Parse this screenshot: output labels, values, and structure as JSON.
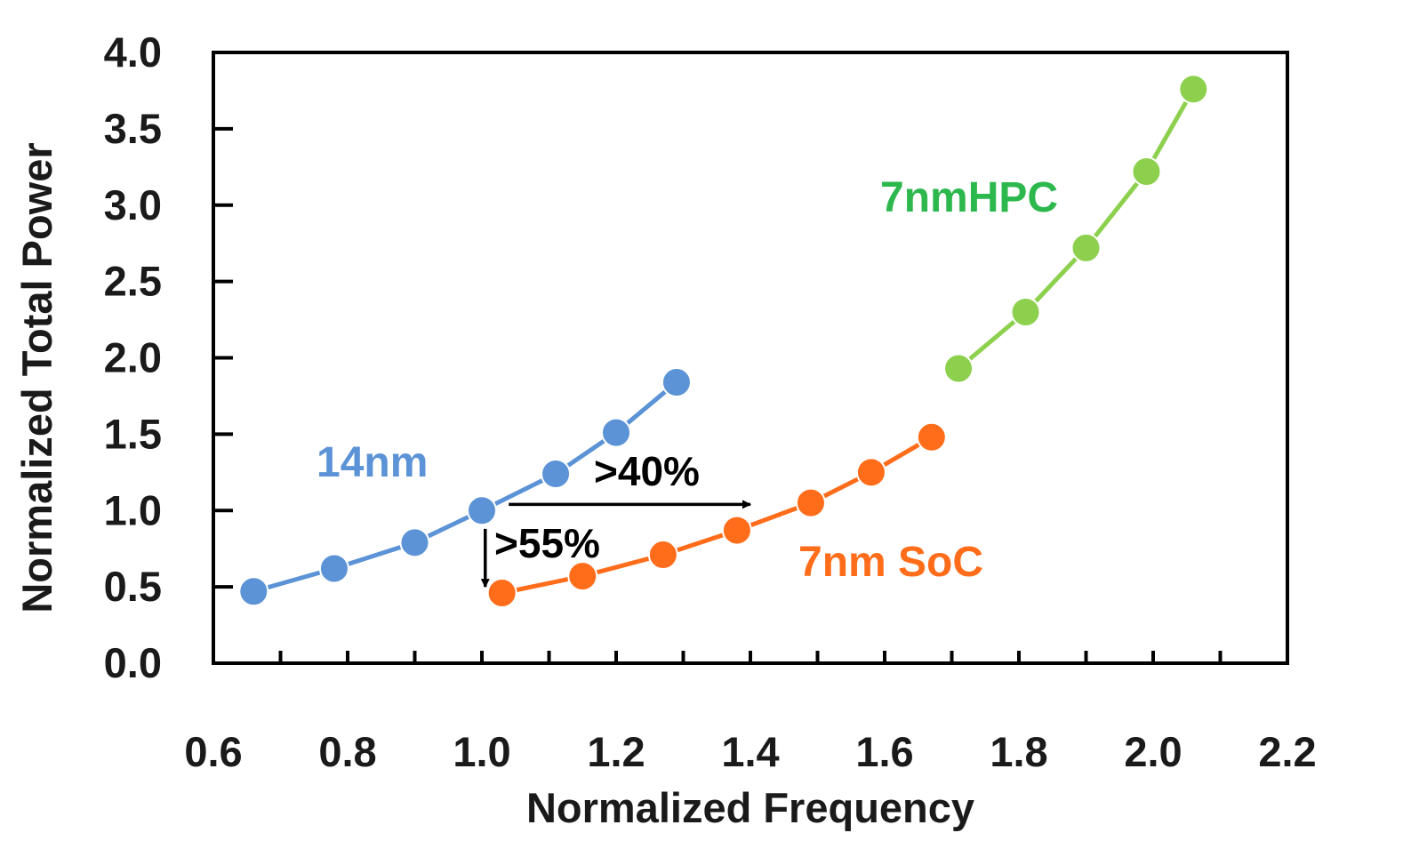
{
  "chart_data": {
    "type": "line",
    "title": "",
    "xlabel": "Normalized Frequency",
    "ylabel": "Normalized Total Power",
    "xlim": [
      0.6,
      2.2
    ],
    "ylim": [
      0.0,
      4.0
    ],
    "x_ticks": [
      "0.6",
      "0.8",
      "1.0",
      "1.2",
      "1.4",
      "1.6",
      "1.8",
      "2.0",
      "2.2"
    ],
    "y_ticks": [
      "0.0",
      "0.5",
      "1.0",
      "1.5",
      "2.0",
      "2.5",
      "3.0",
      "3.5",
      "4.0"
    ],
    "grid": false,
    "legend": "none",
    "series": [
      {
        "name": "14nm",
        "color": "#5b93d6",
        "x": [
          0.66,
          0.78,
          0.9,
          1.0,
          1.11,
          1.2,
          1.29
        ],
        "y": [
          0.47,
          0.62,
          0.79,
          1.0,
          1.24,
          1.51,
          1.84
        ]
      },
      {
        "name": "7nm SoC",
        "color": "#ff6d1a",
        "x": [
          1.03,
          1.15,
          1.27,
          1.38,
          1.49,
          1.58,
          1.67
        ],
        "y": [
          0.46,
          0.57,
          0.71,
          0.87,
          1.05,
          1.25,
          1.48
        ]
      },
      {
        "name": "7nmHPC",
        "color": "#8dd04e",
        "x": [
          1.71,
          1.81,
          1.9,
          1.99,
          2.06
        ],
        "y": [
          1.93,
          2.3,
          2.72,
          3.22,
          3.76
        ]
      }
    ],
    "series_labels": [
      {
        "text": "14nm",
        "color": "#5b93d6"
      },
      {
        "text": "7nm SoC",
        "color": "#ff6d1a"
      },
      {
        "text": "7nmHPC",
        "color": "#2db84e"
      }
    ],
    "annotations": [
      {
        "text": ">40%",
        "arrow_from": [
          1.04,
          1.04
        ],
        "arrow_to": [
          1.4,
          1.04
        ],
        "direction": "right"
      },
      {
        "text": ">55%",
        "arrow_from": [
          1.005,
          0.88
        ],
        "arrow_to": [
          1.005,
          0.5
        ],
        "direction": "down"
      }
    ]
  }
}
